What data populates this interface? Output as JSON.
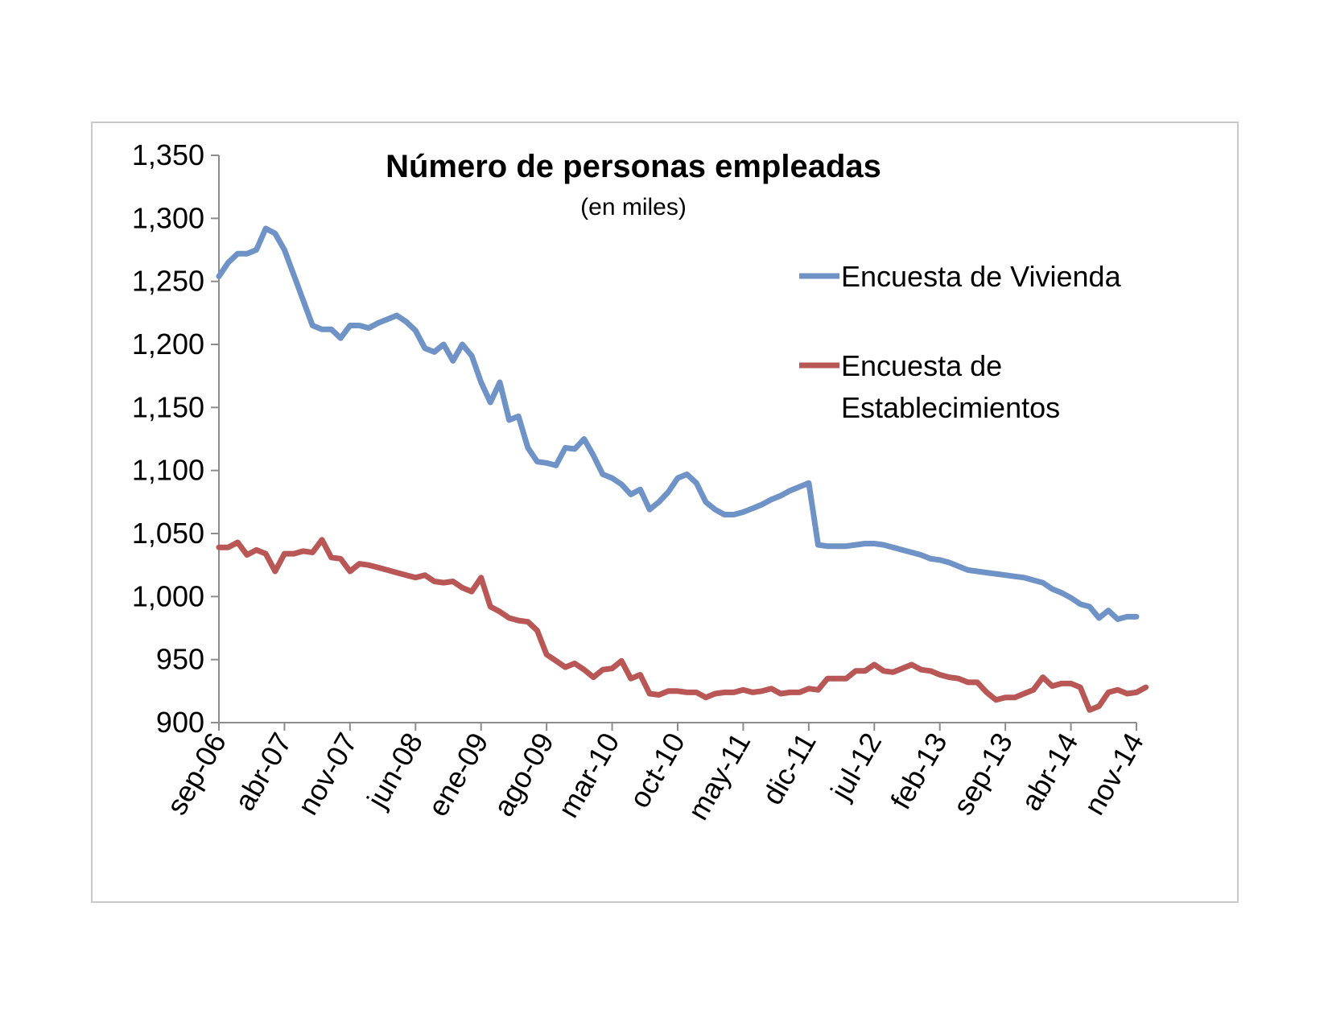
{
  "chart_data": {
    "type": "line",
    "title": "Número de personas empleadas",
    "subtitle": "(en miles)",
    "xlabel": "",
    "ylabel": "",
    "ylim": [
      900,
      1350
    ],
    "y_ticks": [
      "900",
      "950",
      "1,000",
      "1,050",
      "1,100",
      "1,150",
      "1,200",
      "1,250",
      "1,300",
      "1,350"
    ],
    "x_tick_labels": [
      "sep-06",
      "abr-07",
      "nov-07",
      "jun-08",
      "ene-09",
      "ago-09",
      "mar-10",
      "oct-10",
      "may-11",
      "dic-11",
      "jul-12",
      "feb-13",
      "sep-13",
      "abr-14",
      "nov-14"
    ],
    "legend_position": "right",
    "grid": false,
    "series": [
      {
        "name": "Encuesta de Vivienda",
        "color": "#6f93c6",
        "values": [
          1254,
          1265,
          1272,
          1272,
          1275,
          1292,
          1288,
          1275,
          1255,
          1235,
          1215,
          1212,
          1212,
          1205,
          1215,
          1215,
          1213,
          1217,
          1220,
          1223,
          1218,
          1211,
          1197,
          1194,
          1200,
          1187,
          1200,
          1191,
          1170,
          1154,
          1170,
          1140,
          1143,
          1118,
          1107,
          1106,
          1104,
          1118,
          1117,
          1125,
          1112,
          1097,
          1094,
          1089,
          1081,
          1085,
          1069,
          1075,
          1083,
          1094,
          1097,
          1090,
          1075,
          1069,
          1065,
          1065,
          1067,
          1070,
          1073,
          1077,
          1080,
          1084,
          1087,
          1090,
          1041,
          1040,
          1040,
          1040,
          1041,
          1042,
          1042,
          1041,
          1039,
          1037,
          1035,
          1033,
          1030,
          1029,
          1027,
          1024,
          1021,
          1020,
          1019,
          1018,
          1017,
          1016,
          1015,
          1013,
          1011,
          1006,
          1003,
          999,
          994,
          992,
          983,
          989,
          982,
          984,
          984
        ]
      },
      {
        "name": "Encuesta de Establecimientos",
        "color": "#b95756",
        "values": [
          1039,
          1039,
          1043,
          1033,
          1037,
          1034,
          1020,
          1034,
          1034,
          1036,
          1035,
          1045,
          1031,
          1030,
          1020,
          1026,
          1025,
          1023,
          1021,
          1019,
          1017,
          1015,
          1017,
          1012,
          1011,
          1012,
          1007,
          1004,
          1015,
          992,
          988,
          983,
          981,
          980,
          973,
          954,
          949,
          944,
          947,
          942,
          936,
          942,
          943,
          949,
          935,
          938,
          923,
          922,
          925,
          925,
          924,
          924,
          920,
          923,
          924,
          924,
          926,
          924,
          925,
          927,
          923,
          924,
          924,
          927,
          926,
          935,
          935,
          935,
          941,
          941,
          946,
          941,
          940,
          943,
          946,
          942,
          941,
          938,
          936,
          935,
          932,
          932,
          924,
          918,
          920,
          920,
          923,
          926,
          936,
          929,
          931,
          931,
          928,
          910,
          913,
          924,
          926,
          923,
          924,
          928
        ]
      }
    ]
  }
}
